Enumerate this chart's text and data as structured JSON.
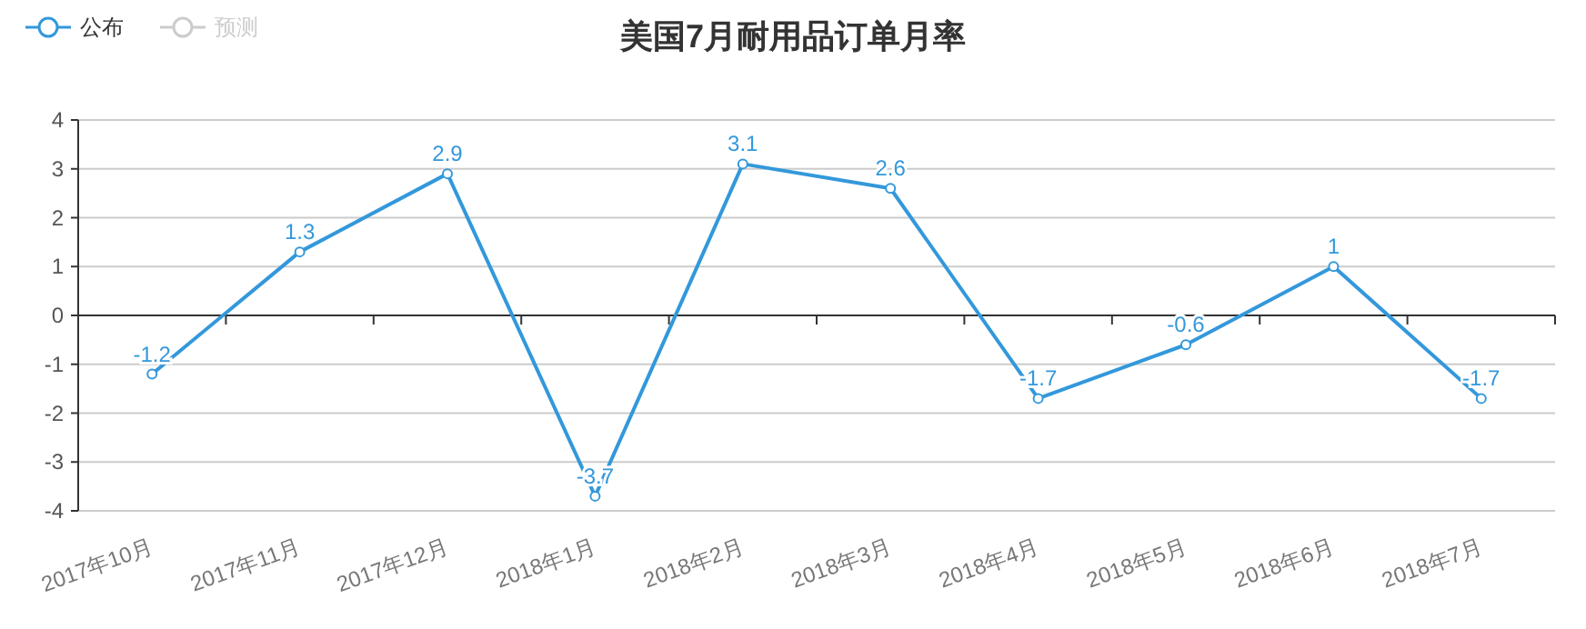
{
  "chart_data": {
    "type": "line",
    "title": "美国7月耐用品订单月率",
    "categories": [
      "2017年10月",
      "2017年11月",
      "2017年12月",
      "2018年1月",
      "2018年2月",
      "2018年3月",
      "2018年4月",
      "2018年5月",
      "2018年6月",
      "2018年7月"
    ],
    "series": [
      {
        "name": "公布",
        "color": "#3398db",
        "values": [
          -1.2,
          1.3,
          2.9,
          -3.7,
          3.1,
          2.6,
          -1.7,
          -0.6,
          1,
          -1.7
        ]
      },
      {
        "name": "预测",
        "color": "#cccccc",
        "values": [
          null,
          null,
          null,
          null,
          null,
          null,
          null,
          null,
          null,
          null
        ]
      }
    ],
    "ylim": [
      -4,
      4
    ],
    "yticks": [
      -4,
      -3,
      -2,
      -1,
      0,
      1,
      2,
      3,
      4
    ],
    "grid": "y",
    "legend": "top left",
    "marker": "circle",
    "line_style": "solid",
    "data_labels": true
  }
}
